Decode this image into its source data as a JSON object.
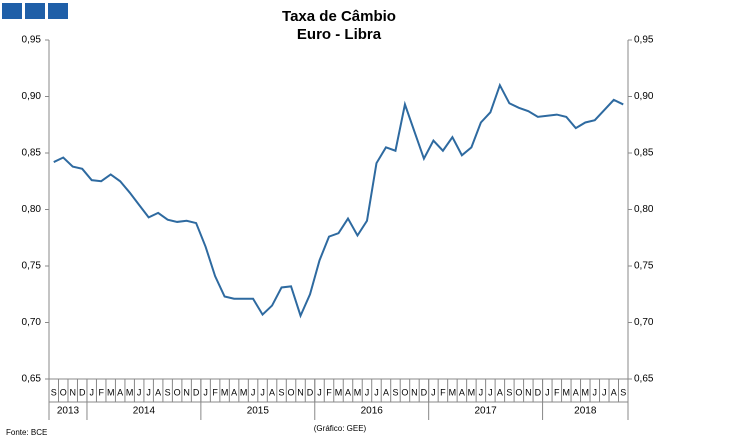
{
  "chart_data": {
    "type": "line",
    "title": "Taxa de Câmbio",
    "subtitle": "Euro - Libra",
    "source": "Fonte: BCE",
    "credit": "(Gráfico: GEE)",
    "categories": [
      "S",
      "O",
      "N",
      "D",
      "J",
      "F",
      "M",
      "A",
      "M",
      "J",
      "J",
      "A",
      "S",
      "O",
      "N",
      "D",
      "J",
      "F",
      "M",
      "A",
      "M",
      "J",
      "J",
      "A",
      "S",
      "O",
      "N",
      "D",
      "J",
      "F",
      "M",
      "A",
      "M",
      "J",
      "J",
      "A",
      "S",
      "O",
      "N",
      "D",
      "J",
      "F",
      "M",
      "A",
      "M",
      "J",
      "J",
      "A",
      "S",
      "O",
      "N",
      "D",
      "J",
      "F",
      "M",
      "A",
      "M",
      "J",
      "J",
      "A",
      "S"
    ],
    "year_labels": [
      "2013",
      "2014",
      "2015",
      "2016",
      "2017",
      "2018"
    ],
    "series": [
      {
        "name": "Euro - Libra",
        "color": "#2e6aa0",
        "values": [
          0.842,
          0.846,
          0.838,
          0.836,
          0.826,
          0.825,
          0.831,
          0.825,
          0.815,
          0.804,
          0.793,
          0.797,
          0.791,
          0.789,
          0.79,
          0.788,
          0.767,
          0.741,
          0.723,
          0.721,
          0.721,
          0.721,
          0.707,
          0.715,
          0.731,
          0.732,
          0.706,
          0.725,
          0.755,
          0.776,
          0.779,
          0.792,
          0.777,
          0.79,
          0.841,
          0.855,
          0.852,
          0.893,
          0.869,
          0.845,
          0.861,
          0.852,
          0.864,
          0.848,
          0.855,
          0.877,
          0.886,
          0.91,
          0.894,
          0.89,
          0.887,
          0.882,
          0.883,
          0.884,
          0.882,
          0.872,
          0.877,
          0.879,
          0.888,
          0.897,
          0.893
        ]
      }
    ],
    "ylim": [
      0.65,
      0.95
    ],
    "yticks": [
      {
        "value": 0.65,
        "label": "0,65"
      },
      {
        "value": 0.7,
        "label": "0,70"
      },
      {
        "value": 0.75,
        "label": "0,75"
      },
      {
        "value": 0.8,
        "label": "0,80"
      },
      {
        "value": 0.85,
        "label": "0,85"
      },
      {
        "value": 0.9,
        "label": "0,90"
      },
      {
        "value": 0.95,
        "label": "0,95"
      }
    ],
    "y2lim": [
      0.65,
      0.95
    ],
    "y2ticks": [
      {
        "value": 0.65,
        "label": "0,65"
      },
      {
        "value": 0.7,
        "label": "0,70"
      },
      {
        "value": 0.75,
        "label": "0,75"
      },
      {
        "value": 0.8,
        "label": "0,80"
      },
      {
        "value": 0.85,
        "label": "0,85"
      },
      {
        "value": 0.9,
        "label": "0,90"
      },
      {
        "value": 0.95,
        "label": "0,95"
      }
    ],
    "grid": false
  }
}
